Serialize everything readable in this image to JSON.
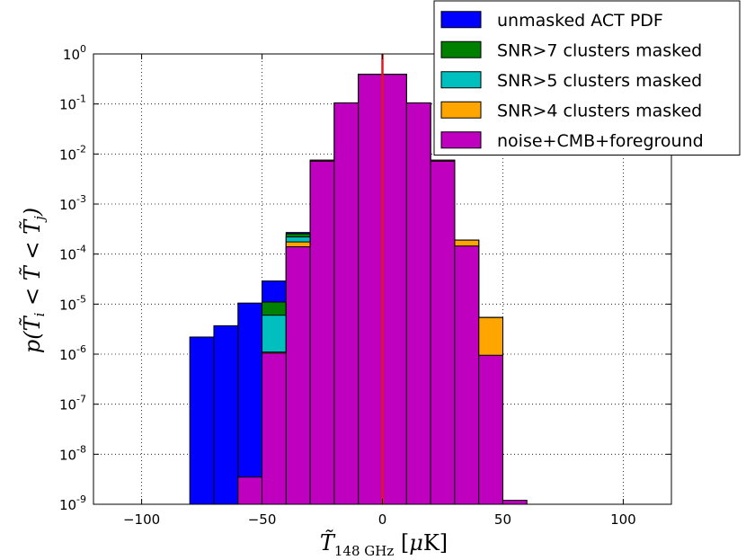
{
  "chart_data": {
    "type": "bar",
    "subtype": "overlaid-histogram-log",
    "xlabel": "T̃ 148 GHz [μK]",
    "ylabel": "p(T̃i < T̃ < T̃j)",
    "xlim": [
      -120,
      120
    ],
    "ylim_log10": [
      -9,
      0
    ],
    "y_scale": "log",
    "grid": true,
    "bin_width": 10,
    "x_ticks": [
      {
        "value": -100,
        "label": "−100"
      },
      {
        "value": -50,
        "label": "−50"
      },
      {
        "value": 0,
        "label": "0"
      },
      {
        "value": 50,
        "label": "50"
      },
      {
        "value": 100,
        "label": "100"
      }
    ],
    "y_ticks": [
      {
        "exp": -9,
        "label_base": "10",
        "label_exp": "-9"
      },
      {
        "exp": -8,
        "label_base": "10",
        "label_exp": "-8"
      },
      {
        "exp": -7,
        "label_base": "10",
        "label_exp": "-7"
      },
      {
        "exp": -6,
        "label_base": "10",
        "label_exp": "-6"
      },
      {
        "exp": -5,
        "label_base": "10",
        "label_exp": "-5"
      },
      {
        "exp": -4,
        "label_base": "10",
        "label_exp": "-4"
      },
      {
        "exp": -3,
        "label_base": "10",
        "label_exp": "-3"
      },
      {
        "exp": -2,
        "label_base": "10",
        "label_exp": "-2"
      },
      {
        "exp": -1,
        "label_base": "10",
        "label_exp": "-1"
      },
      {
        "exp": 0,
        "label_base": "10",
        "label_exp": "0"
      }
    ],
    "vline": {
      "x": 0,
      "color": "#e0191e"
    },
    "legend_position": "top-right",
    "series": [
      {
        "name": "unmasked ACT PDF",
        "color": "#0000ff",
        "bins": [
          {
            "x0": -80,
            "value": 2.2e-06
          },
          {
            "x0": -70,
            "value": 3.7e-06
          },
          {
            "x0": -60,
            "value": 1.05e-05
          },
          {
            "x0": -50,
            "value": 2.9e-05
          },
          {
            "x0": -40,
            "value": 0.00027
          },
          {
            "x0": -30,
            "value": 0.0075
          },
          {
            "x0": -20,
            "value": 0.105
          },
          {
            "x0": -10,
            "value": 0.39
          },
          {
            "x0": 0,
            "value": 0.39
          },
          {
            "x0": 10,
            "value": 0.105
          },
          {
            "x0": 20,
            "value": 0.0075
          },
          {
            "x0": 30,
            "value": 0.00019
          },
          {
            "x0": 40,
            "value": 5.4e-06
          }
        ]
      },
      {
        "name": "SNR>7 clusters masked",
        "color": "#008000",
        "bins": [
          {
            "x0": -50,
            "value": 1.1e-05
          },
          {
            "x0": -40,
            "value": 0.000255
          },
          {
            "x0": -30,
            "value": 0.0075
          },
          {
            "x0": -20,
            "value": 0.105
          },
          {
            "x0": -10,
            "value": 0.39
          },
          {
            "x0": 0,
            "value": 0.39
          },
          {
            "x0": 10,
            "value": 0.105
          },
          {
            "x0": 20,
            "value": 0.0075
          },
          {
            "x0": 30,
            "value": 0.00019
          },
          {
            "x0": 40,
            "value": 5.4e-06
          }
        ]
      },
      {
        "name": "SNR>5 clusters masked",
        "color": "#00bfbf",
        "bins": [
          {
            "x0": -50,
            "value": 6e-06
          },
          {
            "x0": -40,
            "value": 0.00022
          },
          {
            "x0": -30,
            "value": 0.0075
          },
          {
            "x0": -20,
            "value": 0.105
          },
          {
            "x0": -10,
            "value": 0.39
          },
          {
            "x0": 0,
            "value": 0.39
          },
          {
            "x0": 10,
            "value": 0.105
          },
          {
            "x0": 20,
            "value": 0.0075
          },
          {
            "x0": 30,
            "value": 0.00019
          },
          {
            "x0": 40,
            "value": 5.4e-06
          }
        ]
      },
      {
        "name": "SNR>4 clusters masked",
        "color": "#ffa500",
        "bins": [
          {
            "x0": -50,
            "value": 1.1e-06
          },
          {
            "x0": -40,
            "value": 0.000175
          },
          {
            "x0": -30,
            "value": 0.0075
          },
          {
            "x0": -20,
            "value": 0.105
          },
          {
            "x0": -10,
            "value": 0.39
          },
          {
            "x0": 0,
            "value": 0.39
          },
          {
            "x0": 10,
            "value": 0.105
          },
          {
            "x0": 20,
            "value": 0.0075
          },
          {
            "x0": 30,
            "value": 0.00019
          },
          {
            "x0": 40,
            "value": 5.4e-06
          }
        ]
      },
      {
        "name": "noise+CMB+foreground",
        "color": "#bf00bf",
        "bins": [
          {
            "x0": -60,
            "value": 3.5e-09
          },
          {
            "x0": -50,
            "value": 1.05e-06
          },
          {
            "x0": -40,
            "value": 0.00014
          },
          {
            "x0": -30,
            "value": 0.0072
          },
          {
            "x0": -20,
            "value": 0.105
          },
          {
            "x0": -10,
            "value": 0.39
          },
          {
            "x0": 0,
            "value": 0.39
          },
          {
            "x0": 10,
            "value": 0.105
          },
          {
            "x0": 20,
            "value": 0.0072
          },
          {
            "x0": 30,
            "value": 0.000145
          },
          {
            "x0": 40,
            "value": 9.5e-07
          },
          {
            "x0": 50,
            "value": 1.2e-09
          }
        ]
      }
    ]
  }
}
